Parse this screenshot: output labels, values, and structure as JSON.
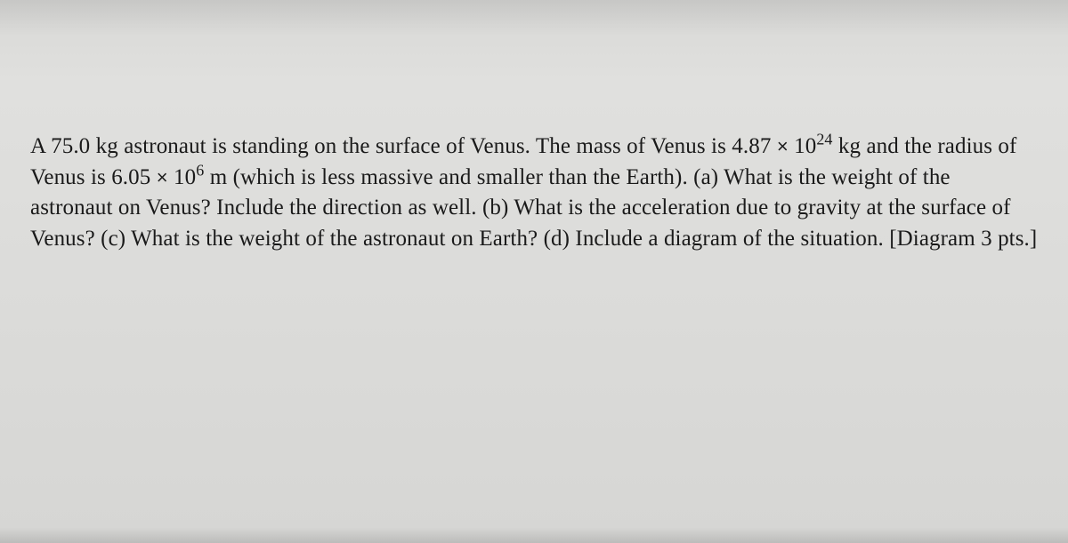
{
  "problem": {
    "mass_astronaut": "75.0",
    "mass_astronaut_unit": "kg",
    "text_intro_1": "A ",
    "text_intro_2": " astronaut is standing on the surface of Venus.  The mass of Venus is ",
    "mass_venus_coeff": "4.87",
    "mass_venus_exp": "24",
    "mass_venus_unit": "kg",
    "text_radius_1": " and the radius of Venus is ",
    "radius_venus_coeff": "6.05",
    "radius_venus_exp": "6",
    "radius_venus_unit": "m",
    "text_radius_2": " (which is less massive and smaller than the Earth).  ",
    "part_a_label": "(a)",
    "part_a_text": " What is the weight of the astronaut on Venus?  Include the direction as well.  ",
    "part_b_label": "(b)",
    "part_b_text": " What is the acceleration due to gravity at the surface of Venus?  ",
    "part_c_label": "(c)",
    "part_c_text": " What is the weight of the astronaut on Earth?  ",
    "part_d_label": "(d)",
    "part_d_text": " Include a diagram of the situation.  [Diagram 3 pts.]",
    "times_symbol": "×",
    "ten": "10"
  },
  "style": {
    "background_color": "#dcdcda",
    "text_color": "#1a1a1a",
    "font_family": "Times New Roman",
    "font_size_pt": 19,
    "line_height": 1.38
  }
}
